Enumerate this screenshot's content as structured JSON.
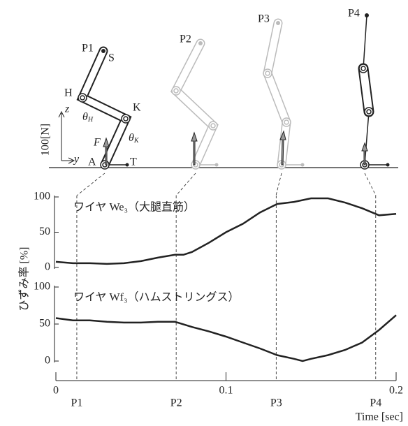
{
  "diagram": {
    "pose_labels": [
      "P1",
      "P2",
      "P3",
      "P4"
    ],
    "point_labels": [
      "S",
      "H",
      "K",
      "A",
      "T"
    ],
    "theta_h": {
      "base": "θ",
      "sub": "H"
    },
    "theta_k": {
      "base": "θ",
      "sub": "K"
    },
    "force": "F",
    "z_axis": "z",
    "y_axis": "y",
    "scale": "100[N]"
  },
  "chart_data": [
    {
      "type": "line",
      "ylabel": "ひずみ率 [%]",
      "xlim": [
        0,
        0.2
      ],
      "ylim": [
        0,
        100
      ],
      "yticks": [
        0,
        50,
        100
      ],
      "series": [
        {
          "name": "ワイヤ We₃（大腿直筋）",
          "color": "#222",
          "x": [
            0,
            0.01,
            0.02,
            0.03,
            0.04,
            0.05,
            0.06,
            0.07,
            0.075,
            0.08,
            0.09,
            0.1,
            0.11,
            0.12,
            0.13,
            0.14,
            0.15,
            0.16,
            0.17,
            0.18,
            0.19,
            0.2
          ],
          "values": [
            8,
            6,
            6,
            5,
            6,
            9,
            14,
            18,
            18,
            22,
            35,
            50,
            62,
            78,
            90,
            93,
            98,
            98,
            92,
            84,
            74,
            76
          ]
        }
      ]
    },
    {
      "type": "line",
      "xlabel": "Time [sec]",
      "xlim": [
        0,
        0.2
      ],
      "xticks": [
        0,
        0.1,
        0.2
      ],
      "ylim": [
        0,
        100
      ],
      "yticks": [
        0,
        50,
        100
      ],
      "series": [
        {
          "name": "ワイヤ Wf₃（ハムストリングス）",
          "color": "#222",
          "x": [
            0,
            0.01,
            0.02,
            0.03,
            0.04,
            0.05,
            0.06,
            0.07,
            0.08,
            0.09,
            0.1,
            0.11,
            0.12,
            0.13,
            0.14,
            0.145,
            0.15,
            0.16,
            0.17,
            0.18,
            0.19,
            0.2
          ],
          "values": [
            58,
            55,
            55,
            53,
            52,
            52,
            53,
            53,
            46,
            40,
            33,
            25,
            17,
            8,
            3,
            0,
            3,
            8,
            15,
            25,
            42,
            62
          ]
        }
      ],
      "markers": [
        {
          "label": "P1",
          "x": 0.0123
        },
        {
          "label": "P2",
          "x": 0.0707
        },
        {
          "label": "P3",
          "x": 0.1295
        },
        {
          "label": "P4",
          "x": 0.188
        }
      ]
    }
  ]
}
